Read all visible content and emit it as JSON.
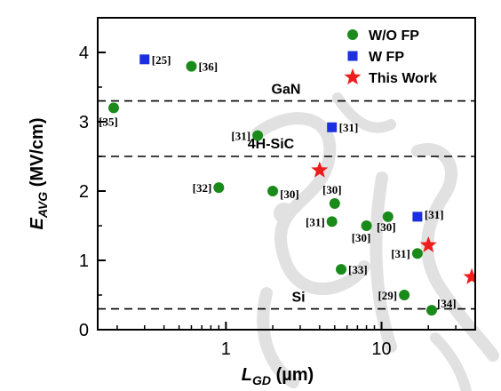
{
  "chart_data": {
    "type": "scatter",
    "x_scale": "log",
    "xlim": [
      0.15,
      40
    ],
    "ylim": [
      0,
      4.5
    ],
    "x_ticks": [
      1,
      10
    ],
    "y_ticks": [
      0,
      1,
      2,
      3,
      4
    ],
    "x_tick_labels": [
      "1",
      "10"
    ],
    "y_tick_labels": [
      "0",
      "1",
      "2",
      "3",
      "4"
    ],
    "xlabel": {
      "main": "L",
      "sub": "GD",
      "unit": " (µm)"
    },
    "ylabel": {
      "main": "E",
      "sub": "AVG",
      "unit": " (MV/cm)"
    },
    "legend_position": "top-right",
    "grid": false,
    "reference_lines": [
      {
        "label": "GaN",
        "y": 3.3
      },
      {
        "label": "4H-SiC",
        "y": 2.5
      },
      {
        "label": "Si",
        "y": 0.3
      }
    ],
    "series": [
      {
        "name": "W/O FP",
        "marker": "circle",
        "color": "#1a8a1a",
        "points": [
          {
            "x": 0.19,
            "y": 3.2,
            "label": "[35]"
          },
          {
            "x": 0.6,
            "y": 3.8,
            "label": "[36]"
          },
          {
            "x": 1.6,
            "y": 2.8,
            "label": "[31]"
          },
          {
            "x": 0.9,
            "y": 2.05,
            "label": "[32]"
          },
          {
            "x": 2.0,
            "y": 2.0,
            "label": "[30]"
          },
          {
            "x": 5.0,
            "y": 1.82,
            "label": "[30]"
          },
          {
            "x": 4.8,
            "y": 1.56,
            "label": "[31]"
          },
          {
            "x": 8.0,
            "y": 1.5,
            "label": "[30]"
          },
          {
            "x": 11.0,
            "y": 1.63,
            "label": "[30]"
          },
          {
            "x": 17.0,
            "y": 1.1,
            "label": "[31]"
          },
          {
            "x": 5.5,
            "y": 0.87,
            "label": "[33]"
          },
          {
            "x": 14.0,
            "y": 0.5,
            "label": "[29]"
          },
          {
            "x": 21.0,
            "y": 0.28,
            "label": "[34]"
          }
        ]
      },
      {
        "name": "W FP",
        "marker": "square",
        "color": "#1b2fe0",
        "points": [
          {
            "x": 0.3,
            "y": 3.9,
            "label": "[25]"
          },
          {
            "x": 4.8,
            "y": 2.92,
            "label": "[31]"
          },
          {
            "x": 17.0,
            "y": 1.63,
            "label": "[31]"
          }
        ]
      },
      {
        "name": "This Work",
        "marker": "star",
        "color": "#ee1c1c",
        "points": [
          {
            "x": 4.0,
            "y": 2.3,
            "label": ""
          },
          {
            "x": 20.0,
            "y": 1.22,
            "label": ""
          },
          {
            "x": 38.0,
            "y": 0.76,
            "label": ""
          }
        ]
      }
    ]
  },
  "watermark": "Script"
}
